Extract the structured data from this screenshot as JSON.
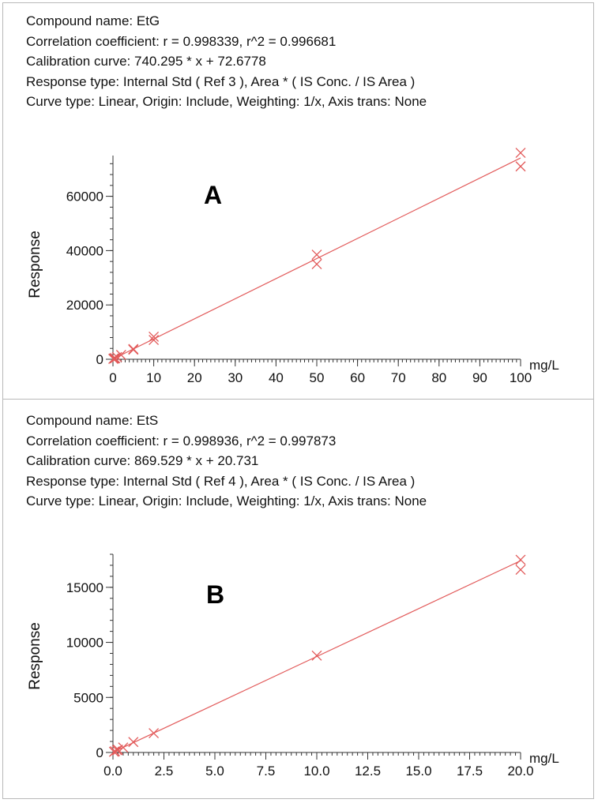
{
  "panels": [
    {
      "info": [
        "Compound name: EtG",
        "Correlation coefficient: r = 0.998339, r^2 = 0.996681",
        "Calibration curve: 740.295 * x + 72.6778",
        "Response type: Internal Std ( Ref 3 ), Area * ( IS Conc. / IS Area )",
        "Curve type: Linear, Origin: Include, Weighting: 1/x, Axis trans: None"
      ],
      "chart_data": {
        "type": "scatter",
        "panel_label": "A",
        "xlabel": "mg/L",
        "ylabel": "Response",
        "xlim": [
          0,
          100
        ],
        "ylim": [
          0,
          75000
        ],
        "xticks": [
          0,
          10,
          20,
          30,
          40,
          50,
          60,
          70,
          80,
          90,
          100
        ],
        "xtick_labels": [
          "0",
          "10",
          "20",
          "30",
          "40",
          "50",
          "60",
          "70",
          "80",
          "90",
          "100"
        ],
        "yticks": [
          0,
          20000,
          40000,
          60000
        ],
        "ytick_labels": [
          "0",
          "20000",
          "40000",
          "60000"
        ],
        "x_minor_step": 1,
        "y_minor_step": 4000,
        "fit": {
          "slope": 740.295,
          "intercept": 72.6778
        },
        "points": [
          {
            "x": 0.1,
            "y": 150
          },
          {
            "x": 0.25,
            "y": 300
          },
          {
            "x": 0.5,
            "y": 450
          },
          {
            "x": 0.5,
            "y": 300
          },
          {
            "x": 1,
            "y": 800
          },
          {
            "x": 2,
            "y": 1600
          },
          {
            "x": 5,
            "y": 3800
          },
          {
            "x": 5,
            "y": 3500
          },
          {
            "x": 10,
            "y": 8300
          },
          {
            "x": 10,
            "y": 7100
          },
          {
            "x": 50,
            "y": 38500
          },
          {
            "x": 50,
            "y": 35000
          },
          {
            "x": 100,
            "y": 76000
          },
          {
            "x": 100,
            "y": 71000
          }
        ]
      }
    },
    {
      "info": [
        "Compound name: EtS",
        "Correlation coefficient: r = 0.998936, r^2 = 0.997873",
        "Calibration curve: 869.529 * x + 20.731",
        "Response type: Internal Std ( Ref 4 ), Area * ( IS Conc. / IS Area )",
        "Curve type: Linear, Origin: Include, Weighting: 1/x, Axis trans: None"
      ],
      "chart_data": {
        "type": "scatter",
        "panel_label": "B",
        "xlabel": "mg/L",
        "ylabel": "Response",
        "xlim": [
          0,
          20
        ],
        "ylim": [
          0,
          18000
        ],
        "xticks": [
          0,
          2.5,
          5,
          7.5,
          10,
          12.5,
          15,
          17.5,
          20
        ],
        "xtick_labels": [
          "0.0",
          "2.5",
          "5.0",
          "7.5",
          "10.0",
          "12.5",
          "15.0",
          "17.5",
          "20.0"
        ],
        "yticks": [
          0,
          5000,
          10000,
          15000
        ],
        "ytick_labels": [
          "0",
          "5000",
          "10000",
          "15000"
        ],
        "x_minor_step": 0.25,
        "y_minor_step": 1000,
        "fit": {
          "slope": 869.529,
          "intercept": 20.731
        },
        "points": [
          {
            "x": 0.05,
            "y": 60
          },
          {
            "x": 0.1,
            "y": 110
          },
          {
            "x": 0.2,
            "y": 200
          },
          {
            "x": 0.25,
            "y": 250
          },
          {
            "x": 0.5,
            "y": 450
          },
          {
            "x": 1,
            "y": 950
          },
          {
            "x": 2,
            "y": 1750
          },
          {
            "x": 10,
            "y": 8800
          },
          {
            "x": 20,
            "y": 17500
          },
          {
            "x": 20,
            "y": 16600
          }
        ]
      }
    }
  ]
}
